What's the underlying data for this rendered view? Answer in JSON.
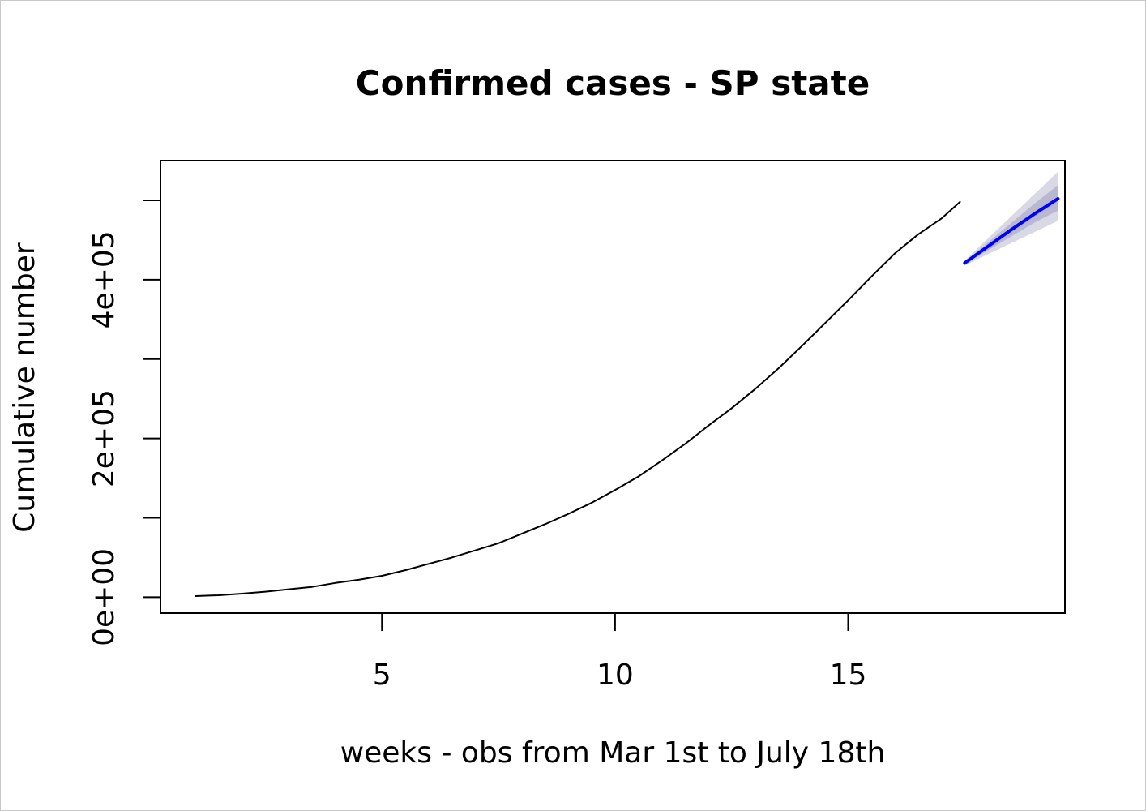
{
  "chart_data": {
    "type": "line",
    "title": "Confirmed cases - SP state",
    "xlabel": "weeks - obs from Mar 1st to July 18th",
    "ylabel": "Cumulative number",
    "xlim": [
      0.25,
      19.65
    ],
    "ylim": [
      -20000,
      550000
    ],
    "x_ticks": [
      5,
      10,
      15
    ],
    "x_tick_labels": [
      "5",
      "10",
      "15"
    ],
    "y_ticks": [
      0,
      100000,
      200000,
      300000,
      400000,
      500000
    ],
    "y_tick_labels": [
      "0e+00",
      "",
      "2e+05",
      "",
      "4e+05",
      ""
    ],
    "grid": false,
    "series": [
      {
        "x": [
          1.0,
          1.5,
          2.0,
          2.5,
          3.0,
          3.5,
          4.0,
          4.5,
          5.0,
          5.5,
          6.0,
          6.5,
          7.0,
          7.5,
          8.0,
          8.5,
          9.0,
          9.5,
          10.0,
          10.5,
          11.0,
          11.5,
          12.0,
          12.5,
          13.0,
          13.5,
          14.0,
          14.5,
          15.0,
          15.5,
          16.0,
          16.5,
          17.0,
          17.4
        ],
        "y": [
          1500,
          2500,
          4500,
          7000,
          10000,
          13000,
          18000,
          22000,
          27000,
          34000,
          42000,
          50000,
          59000,
          68000,
          80000,
          92000,
          105000,
          119000,
          135000,
          152000,
          172000,
          193000,
          216000,
          238000,
          262000,
          288000,
          316000,
          345000,
          374000,
          404000,
          433000,
          457000,
          477000,
          498000
        ],
        "color": "#000000"
      },
      {
        "x": [
          17.5,
          18.0,
          18.5,
          19.0,
          19.5
        ],
        "y": [
          421000,
          442000,
          463000,
          483000,
          502000
        ],
        "color": "#0000ff",
        "band_outer_upper": [
          424000,
          452000,
          480000,
          508000,
          536000
        ],
        "band_outer_lower": [
          418000,
          432000,
          446000,
          460000,
          474000
        ],
        "band_inner_upper": [
          422500,
          447000,
          471500,
          496000,
          519000
        ],
        "band_inner_lower": [
          419500,
          437000,
          454500,
          472000,
          487000
        ],
        "band_outer_color": "#d9d9e6",
        "band_inner_color": "#b8b8d0"
      }
    ]
  }
}
